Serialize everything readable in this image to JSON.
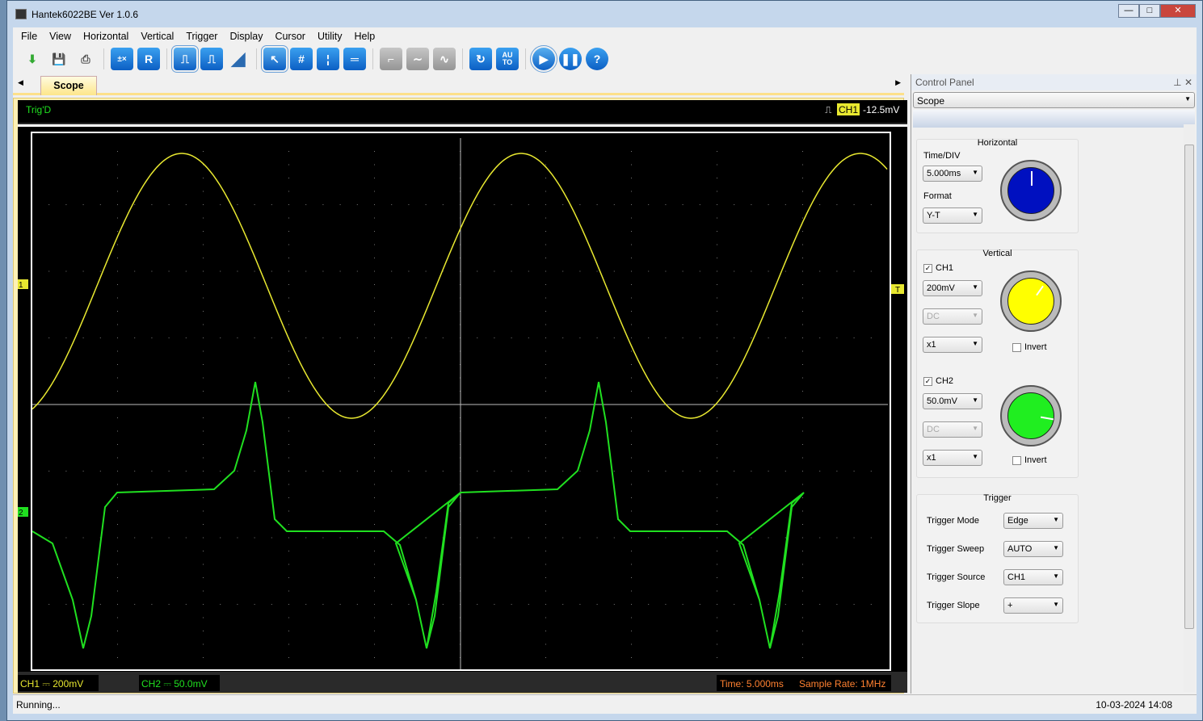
{
  "window": {
    "title": "Hantek6022BE Ver 1.0.6"
  },
  "menu": [
    "File",
    "View",
    "Horizontal",
    "Vertical",
    "Trigger",
    "Display",
    "Cursor",
    "Utility",
    "Help"
  ],
  "toolbar": [
    "open-icon",
    "save-icon",
    "print-icon",
    "math-icon",
    "reference-icon",
    "pulse-icon",
    "pulse-alt-icon",
    "ramp-icon",
    "cursor-select-icon",
    "grid-icon",
    "vertical-cursor-icon",
    "horizontal-cursor-icon",
    "step-icon",
    "sine-gray-icon",
    "sine-icon",
    "refresh-icon",
    "auto-icon",
    "run-icon",
    "pause-icon",
    "help-icon"
  ],
  "toolbar_labels": {
    "reference": "R",
    "auto": "AU\nTO",
    "help": "?"
  },
  "tab": {
    "label": "Scope"
  },
  "scope": {
    "trig_status": "Trig'D",
    "trig_channel": "CH1",
    "trig_level": "-12.5mV",
    "ch1_marker": "1",
    "ch2_marker": "2",
    "trig_marker": "T",
    "ch1_label": "CH1 ⎓  200mV",
    "ch2_label": "CH2 ⎓  50.0mV",
    "time": "Time: 5.000ms",
    "sample_rate": "Sample Rate: 1MHz",
    "colors": {
      "ch1": "#e8e830",
      "ch2": "#20e020",
      "time": "#ff8030"
    }
  },
  "control_panel": {
    "title": "Control Panel",
    "mode": "Scope",
    "horizontal": {
      "title": "Horizontal",
      "timediv_label": "Time/DIV",
      "timediv": "5.000ms",
      "format_label": "Format",
      "format": "Y-T"
    },
    "vertical": {
      "title": "Vertical",
      "ch1": {
        "label": "CH1",
        "checked": true,
        "volts": "200mV",
        "coupling": "DC",
        "probe": "x1",
        "invert": "Invert"
      },
      "ch2": {
        "label": "CH2",
        "checked": true,
        "volts": "50.0mV",
        "coupling": "DC",
        "probe": "x1",
        "invert": "Invert"
      }
    },
    "trigger": {
      "title": "Trigger",
      "mode_label": "Trigger Mode",
      "mode": "Edge",
      "sweep_label": "Trigger Sweep",
      "sweep": "AUTO",
      "source_label": "Trigger Source",
      "source": "CH1",
      "slope_label": "Trigger Slope",
      "slope": "+"
    }
  },
  "status": {
    "text": "Running...",
    "datetime": "10-03-2024 14:08"
  }
}
